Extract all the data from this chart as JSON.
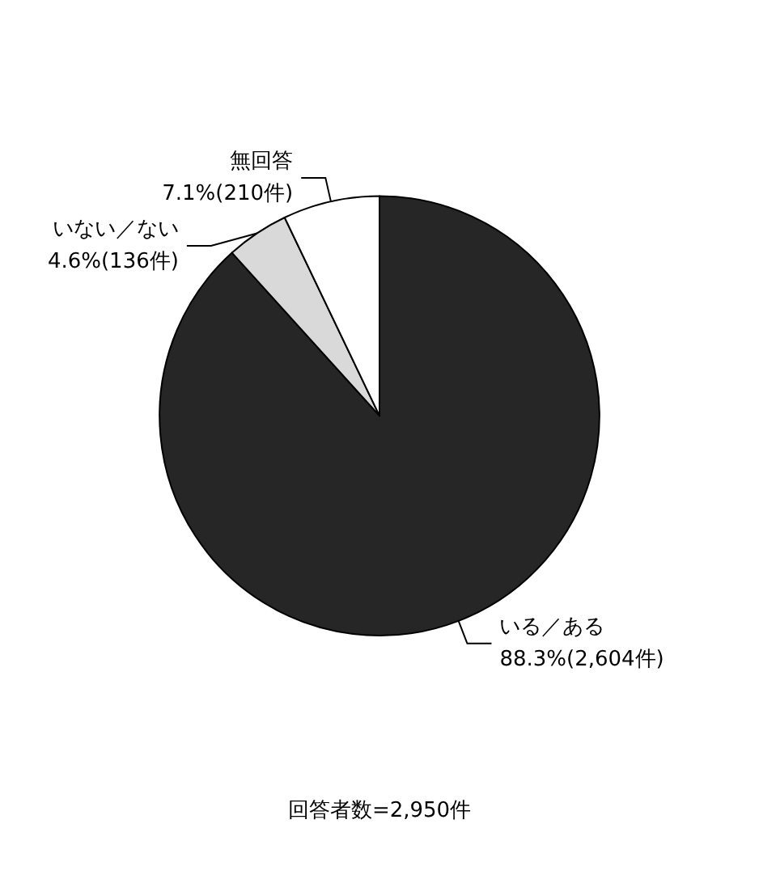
{
  "chart_data": {
    "type": "pie",
    "categories": [
      "いる／ある",
      "いない／ない",
      "無回答"
    ],
    "values": [
      88.3,
      4.6,
      7.1
    ],
    "colors": [
      "#262626",
      "#d9d9d9",
      "#ffffff"
    ],
    "value_labels": [
      "88.3%(2,604件)",
      "4.6%(136件)",
      "7.1%(210件)"
    ],
    "annotations": [
      "回答者数=2,950件"
    ],
    "legend": false
  }
}
